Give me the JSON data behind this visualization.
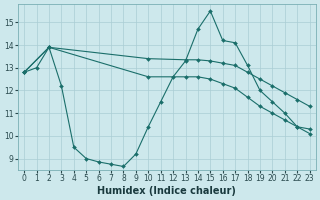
{
  "line1": {
    "x": [
      0,
      1,
      2,
      3,
      4,
      5,
      6,
      7,
      8,
      9,
      10,
      11,
      12,
      13,
      14,
      15,
      16,
      17,
      18,
      19,
      20,
      21,
      22,
      23
    ],
    "y": [
      12.8,
      13.0,
      13.9,
      12.2,
      9.5,
      9.0,
      8.85,
      8.75,
      8.65,
      9.2,
      10.4,
      11.5,
      12.6,
      13.3,
      14.7,
      15.5,
      14.2,
      14.1,
      13.1,
      12.0,
      11.5,
      11.0,
      10.4,
      10.3
    ]
  },
  "line2": {
    "x": [
      0,
      2,
      10,
      13,
      14,
      15,
      16,
      17,
      18,
      19,
      20,
      21,
      22,
      23
    ],
    "y": [
      12.8,
      13.9,
      13.4,
      13.35,
      13.35,
      13.3,
      13.2,
      13.1,
      12.8,
      12.5,
      12.2,
      11.9,
      11.6,
      11.3
    ]
  },
  "line3": {
    "x": [
      0,
      2,
      10,
      13,
      14,
      15,
      16,
      17,
      18,
      19,
      20,
      21,
      22,
      23
    ],
    "y": [
      12.8,
      13.9,
      12.6,
      12.6,
      12.6,
      12.5,
      12.3,
      12.1,
      11.7,
      11.3,
      11.0,
      10.7,
      10.4,
      10.1
    ]
  },
  "xlabel": "Humidex (Indice chaleur)",
  "ylim": [
    8.5,
    15.8
  ],
  "xlim": [
    -0.5,
    23.5
  ],
  "yticks": [
    9,
    10,
    11,
    12,
    13,
    14,
    15
  ],
  "xticks": [
    0,
    1,
    2,
    3,
    4,
    5,
    6,
    7,
    8,
    9,
    10,
    11,
    12,
    13,
    14,
    15,
    16,
    17,
    18,
    19,
    20,
    21,
    22,
    23
  ],
  "bg_color": "#cde8ec",
  "grid_color": "#aacdd4",
  "line_color": "#1a6e6a",
  "tick_fontsize": 5.5,
  "xlabel_fontsize": 7.0
}
